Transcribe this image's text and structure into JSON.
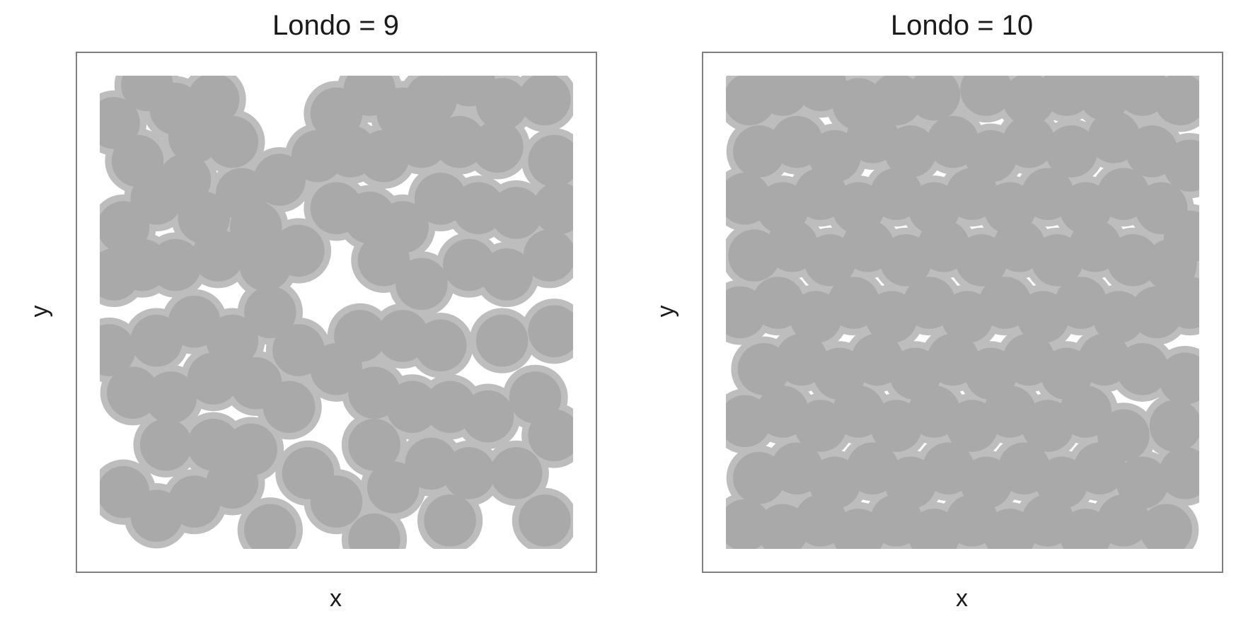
{
  "chart_data": [
    {
      "type": "scatter",
      "title": "Londo = 9",
      "xlabel": "x",
      "ylabel": "y",
      "xlim": [
        0,
        1
      ],
      "ylim": [
        0,
        1
      ],
      "grid": false,
      "legend": "none",
      "colors": {
        "fill": "#a9a9a9",
        "halo": "#bdbdbd",
        "frame": "#7f7f7f",
        "background": "#ffffff"
      },
      "marker": "filled-circle",
      "point_radius": 0.055,
      "halo_width": 0.014,
      "points": [
        [
          0.03,
          0.9
        ],
        [
          0.08,
          0.82
        ],
        [
          0.1,
          0.98
        ],
        [
          0.16,
          0.93
        ],
        [
          0.2,
          0.87
        ],
        [
          0.24,
          0.95
        ],
        [
          0.28,
          0.86
        ],
        [
          0.05,
          0.68
        ],
        [
          0.12,
          0.74
        ],
        [
          0.18,
          0.78
        ],
        [
          0.22,
          0.7
        ],
        [
          0.3,
          0.75
        ],
        [
          0.38,
          0.78
        ],
        [
          0.33,
          0.68
        ],
        [
          0.03,
          0.58
        ],
        [
          0.09,
          0.6
        ],
        [
          0.16,
          0.6
        ],
        [
          0.25,
          0.62
        ],
        [
          0.35,
          0.6
        ],
        [
          0.42,
          0.63
        ],
        [
          0.5,
          0.92
        ],
        [
          0.57,
          0.97
        ],
        [
          0.64,
          0.92
        ],
        [
          0.7,
          0.95
        ],
        [
          0.78,
          0.99
        ],
        [
          0.85,
          0.94
        ],
        [
          0.94,
          0.95
        ],
        [
          0.46,
          0.83
        ],
        [
          0.53,
          0.84
        ],
        [
          0.6,
          0.83
        ],
        [
          0.68,
          0.86
        ],
        [
          0.76,
          0.86
        ],
        [
          0.84,
          0.85
        ],
        [
          0.96,
          0.82
        ],
        [
          0.5,
          0.72
        ],
        [
          0.57,
          0.7
        ],
        [
          0.64,
          0.68
        ],
        [
          0.72,
          0.74
        ],
        [
          0.8,
          0.72
        ],
        [
          0.88,
          0.71
        ],
        [
          0.97,
          0.72
        ],
        [
          0.6,
          0.61
        ],
        [
          0.68,
          0.56
        ],
        [
          0.78,
          0.6
        ],
        [
          0.86,
          0.58
        ],
        [
          0.95,
          0.62
        ],
        [
          0.12,
          0.44
        ],
        [
          0.2,
          0.48
        ],
        [
          0.28,
          0.44
        ],
        [
          0.36,
          0.5
        ],
        [
          0.42,
          0.42
        ],
        [
          0.02,
          0.42
        ],
        [
          0.07,
          0.33
        ],
        [
          0.15,
          0.32
        ],
        [
          0.24,
          0.36
        ],
        [
          0.33,
          0.35
        ],
        [
          0.4,
          0.3
        ],
        [
          0.05,
          0.12
        ],
        [
          0.12,
          0.07
        ],
        [
          0.2,
          0.1
        ],
        [
          0.28,
          0.14
        ],
        [
          0.14,
          0.22
        ],
        [
          0.24,
          0.22
        ],
        [
          0.32,
          0.21
        ],
        [
          0.36,
          0.04
        ],
        [
          0.44,
          0.16
        ],
        [
          0.5,
          0.1
        ],
        [
          0.58,
          0.22
        ],
        [
          0.62,
          0.13
        ],
        [
          0.5,
          0.38
        ],
        [
          0.55,
          0.45
        ],
        [
          0.64,
          0.45
        ],
        [
          0.72,
          0.43
        ],
        [
          0.85,
          0.44
        ],
        [
          0.96,
          0.46
        ],
        [
          0.58,
          0.33
        ],
        [
          0.66,
          0.3
        ],
        [
          0.74,
          0.3
        ],
        [
          0.82,
          0.28
        ],
        [
          0.92,
          0.32
        ],
        [
          0.7,
          0.18
        ],
        [
          0.78,
          0.16
        ],
        [
          0.88,
          0.16
        ],
        [
          0.96,
          0.24
        ],
        [
          0.94,
          0.06
        ],
        [
          0.74,
          0.06
        ],
        [
          0.58,
          0.02
        ]
      ]
    },
    {
      "type": "scatter",
      "title": "Londo = 10",
      "xlabel": "x",
      "ylabel": "y",
      "xlim": [
        0,
        1
      ],
      "ylim": [
        0,
        1
      ],
      "grid": false,
      "legend": "none",
      "colors": {
        "fill": "#a9a9a9",
        "halo": "#bdbdbd",
        "frame": "#7f7f7f",
        "background": "#ffffff"
      },
      "marker": "filled-circle",
      "point_radius": 0.055,
      "halo_width": 0.014,
      "points": [
        [
          0.05,
          0.95
        ],
        [
          0.12,
          0.97
        ],
        [
          0.2,
          0.98
        ],
        [
          0.28,
          0.94
        ],
        [
          0.36,
          0.95
        ],
        [
          0.44,
          0.96
        ],
        [
          0.55,
          0.97
        ],
        [
          0.64,
          0.95
        ],
        [
          0.72,
          0.97
        ],
        [
          0.8,
          0.96
        ],
        [
          0.88,
          0.97
        ],
        [
          0.96,
          0.95
        ],
        [
          0.07,
          0.84
        ],
        [
          0.15,
          0.86
        ],
        [
          0.23,
          0.83
        ],
        [
          0.31,
          0.87
        ],
        [
          0.39,
          0.84
        ],
        [
          0.48,
          0.86
        ],
        [
          0.56,
          0.83
        ],
        [
          0.64,
          0.86
        ],
        [
          0.73,
          0.84
        ],
        [
          0.82,
          0.87
        ],
        [
          0.9,
          0.84
        ],
        [
          0.98,
          0.81
        ],
        [
          0.04,
          0.74
        ],
        [
          0.12,
          0.72
        ],
        [
          0.2,
          0.75
        ],
        [
          0.28,
          0.72
        ],
        [
          0.36,
          0.75
        ],
        [
          0.44,
          0.72
        ],
        [
          0.52,
          0.75
        ],
        [
          0.6,
          0.72
        ],
        [
          0.68,
          0.75
        ],
        [
          0.76,
          0.72
        ],
        [
          0.84,
          0.75
        ],
        [
          0.92,
          0.72
        ],
        [
          0.98,
          0.66
        ],
        [
          0.06,
          0.62
        ],
        [
          0.14,
          0.64
        ],
        [
          0.22,
          0.61
        ],
        [
          0.3,
          0.64
        ],
        [
          0.38,
          0.61
        ],
        [
          0.46,
          0.64
        ],
        [
          0.54,
          0.61
        ],
        [
          0.62,
          0.64
        ],
        [
          0.7,
          0.61
        ],
        [
          0.78,
          0.64
        ],
        [
          0.86,
          0.61
        ],
        [
          0.94,
          0.6
        ],
        [
          0.03,
          0.5
        ],
        [
          0.11,
          0.52
        ],
        [
          0.19,
          0.49
        ],
        [
          0.27,
          0.52
        ],
        [
          0.35,
          0.49
        ],
        [
          0.43,
          0.52
        ],
        [
          0.51,
          0.49
        ],
        [
          0.59,
          0.52
        ],
        [
          0.67,
          0.49
        ],
        [
          0.75,
          0.52
        ],
        [
          0.83,
          0.49
        ],
        [
          0.91,
          0.5
        ],
        [
          0.98,
          0.52
        ],
        [
          0.08,
          0.38
        ],
        [
          0.16,
          0.4
        ],
        [
          0.24,
          0.37
        ],
        [
          0.32,
          0.4
        ],
        [
          0.4,
          0.37
        ],
        [
          0.48,
          0.4
        ],
        [
          0.56,
          0.37
        ],
        [
          0.64,
          0.4
        ],
        [
          0.72,
          0.37
        ],
        [
          0.8,
          0.4
        ],
        [
          0.88,
          0.38
        ],
        [
          0.97,
          0.36
        ],
        [
          0.04,
          0.27
        ],
        [
          0.12,
          0.29
        ],
        [
          0.2,
          0.26
        ],
        [
          0.28,
          0.29
        ],
        [
          0.36,
          0.26
        ],
        [
          0.44,
          0.29
        ],
        [
          0.52,
          0.26
        ],
        [
          0.6,
          0.29
        ],
        [
          0.68,
          0.26
        ],
        [
          0.76,
          0.29
        ],
        [
          0.84,
          0.24
        ],
        [
          0.95,
          0.26
        ],
        [
          0.07,
          0.15
        ],
        [
          0.15,
          0.17
        ],
        [
          0.23,
          0.14
        ],
        [
          0.31,
          0.17
        ],
        [
          0.39,
          0.14
        ],
        [
          0.47,
          0.17
        ],
        [
          0.55,
          0.14
        ],
        [
          0.63,
          0.17
        ],
        [
          0.71,
          0.14
        ],
        [
          0.79,
          0.17
        ],
        [
          0.88,
          0.14
        ],
        [
          0.97,
          0.16
        ],
        [
          0.04,
          0.05
        ],
        [
          0.12,
          0.04
        ],
        [
          0.2,
          0.06
        ],
        [
          0.28,
          0.03
        ],
        [
          0.36,
          0.06
        ],
        [
          0.44,
          0.03
        ],
        [
          0.52,
          0.06
        ],
        [
          0.6,
          0.03
        ],
        [
          0.68,
          0.06
        ],
        [
          0.76,
          0.03
        ],
        [
          0.84,
          0.06
        ],
        [
          0.93,
          0.04
        ]
      ]
    }
  ]
}
